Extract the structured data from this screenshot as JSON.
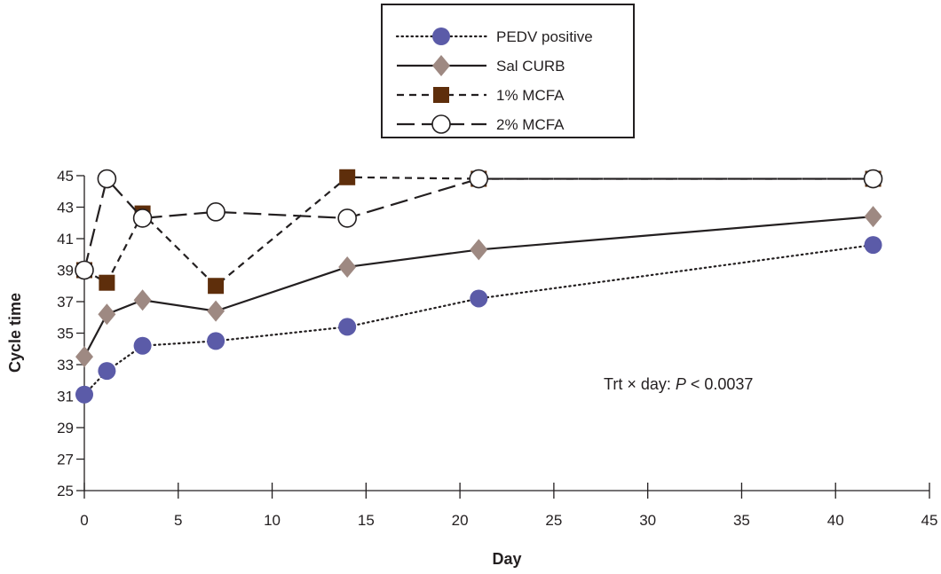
{
  "chart_data": {
    "type": "line",
    "title": "",
    "xlabel": "Day",
    "ylabel": "Cycle time",
    "xlim": [
      0,
      45
    ],
    "ylim": [
      25,
      45
    ],
    "xticks": [
      0,
      5,
      10,
      15,
      20,
      25,
      30,
      35,
      40,
      45
    ],
    "yticks": [
      25,
      27,
      29,
      31,
      33,
      35,
      37,
      39,
      41,
      43,
      45
    ],
    "grid": false,
    "legend_position": "top-center",
    "annotation": {
      "prefix": "Trt × day: ",
      "italic": "P",
      "suffix": " < 0.0037"
    },
    "series": [
      {
        "name": "PEDV positive",
        "line_style": "dotted",
        "marker": "circle-filled",
        "color": "#5b5ba8",
        "x": [
          0,
          1.2,
          3.1,
          7,
          14,
          21,
          42
        ],
        "y": [
          31.1,
          32.6,
          34.2,
          34.5,
          35.4,
          37.2,
          40.6
        ]
      },
      {
        "name": "Sal CURB",
        "line_style": "solid",
        "marker": "diamond",
        "color": "#9e8982",
        "x": [
          0,
          1.2,
          3.1,
          7,
          14,
          21,
          42
        ],
        "y": [
          33.5,
          36.2,
          37.1,
          36.4,
          39.2,
          40.3,
          42.4
        ]
      },
      {
        "name": "1% MCFA",
        "line_style": "short-dash",
        "marker": "square",
        "color": "#5e2e0b",
        "x": [
          0,
          1.2,
          3.1,
          7,
          14,
          21,
          42
        ],
        "y": [
          39,
          38.2,
          42.6,
          38,
          44.9,
          44.8,
          44.8
        ]
      },
      {
        "name": "2% MCFA",
        "line_style": "long-dash",
        "marker": "circle-open",
        "color": "#231f20",
        "x": [
          0,
          1.2,
          3.1,
          7,
          14,
          21,
          42
        ],
        "y": [
          39,
          44.8,
          42.3,
          42.7,
          42.3,
          44.8,
          44.8
        ]
      }
    ]
  }
}
